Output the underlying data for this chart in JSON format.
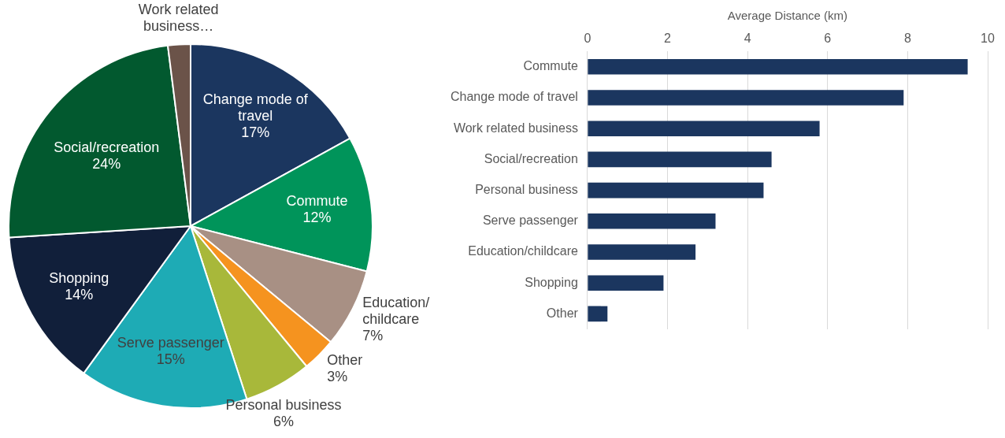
{
  "chart_data": [
    {
      "type": "pie",
      "categories": [
        "Change mode of travel",
        "Commute",
        "Education/ childcare",
        "Other",
        "Personal business",
        "Serve passenger",
        "Shopping",
        "Social/recreation",
        "Work related business…"
      ],
      "values": [
        17,
        12,
        7,
        3,
        6,
        15,
        14,
        24,
        2
      ],
      "colors": [
        "#1b365f",
        "#00945a",
        "#a89084",
        "#f5931f",
        "#a8b83a",
        "#1eabb5",
        "#111f3a",
        "#02592f",
        "#6b5349"
      ],
      "value_labels": [
        "17%",
        "12%",
        "7%",
        "3%",
        "6%",
        "15%",
        "14%",
        "24%",
        null
      ]
    },
    {
      "type": "bar",
      "orientation": "horizontal",
      "xlabel": "Average Distance (km)",
      "categories": [
        "Commute",
        "Change mode of travel",
        "Work related business",
        "Social/recreation",
        "Personal business",
        "Serve passenger",
        "Education/childcare",
        "Shopping",
        "Other"
      ],
      "values": [
        9.5,
        7.9,
        5.8,
        4.6,
        4.4,
        3.2,
        2.7,
        1.9,
        0.5
      ],
      "color": "#1b365f",
      "xlim": [
        0,
        10
      ],
      "xticks": [
        0,
        2,
        4,
        6,
        8,
        10
      ],
      "grid": "x"
    }
  ]
}
